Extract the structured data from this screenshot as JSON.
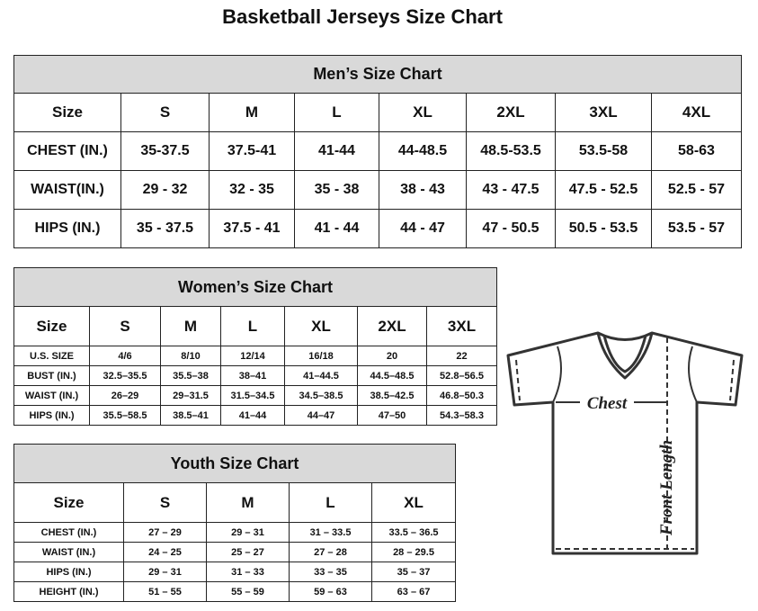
{
  "page_title": "Basketball Jerseys Size Chart",
  "men": {
    "title": "Men’s Size Chart",
    "headers": [
      "Size",
      "S",
      "M",
      "L",
      "XL",
      "2XL",
      "3XL",
      "4XL"
    ],
    "rows": [
      [
        "CHEST (IN.)",
        "35-37.5",
        "37.5-41",
        "41-44",
        "44-48.5",
        "48.5-53.5",
        "53.5-58",
        "58-63"
      ],
      [
        "WAIST(IN.)",
        "29 - 32",
        "32 - 35",
        "35 - 38",
        "38 - 43",
        "43 - 47.5",
        "47.5 - 52.5",
        "52.5 - 57"
      ],
      [
        "HIPS (IN.)",
        "35 - 37.5",
        "37.5 - 41",
        "41 - 44",
        "44 - 47",
        "47 - 50.5",
        "50.5 - 53.5",
        "53.5 - 57"
      ]
    ]
  },
  "women": {
    "title": "Women’s Size Chart",
    "headers": [
      "Size",
      "S",
      "M",
      "L",
      "XL",
      "2XL",
      "3XL"
    ],
    "rows": [
      [
        "U.S. SIZE",
        "4/6",
        "8/10",
        "12/14",
        "16/18",
        "20",
        "22"
      ],
      [
        "BUST (IN.)",
        "32.5–35.5",
        "35.5–38",
        "38–41",
        "41–44.5",
        "44.5–48.5",
        "52.8–56.5"
      ],
      [
        "WAIST (IN.)",
        "26–29",
        "29–31.5",
        "31.5–34.5",
        "34.5–38.5",
        "38.5–42.5",
        "46.8–50.3"
      ],
      [
        "HIPS (IN.)",
        "35.5–58.5",
        "38.5–41",
        "41–44",
        "44–47",
        "47–50",
        "54.3–58.3"
      ]
    ]
  },
  "youth": {
    "title": "Youth Size Chart",
    "headers": [
      "Size",
      "S",
      "M",
      "L",
      "XL"
    ],
    "rows": [
      [
        "CHEST (IN.)",
        "27 – 29",
        "29 – 31",
        "31 – 33.5",
        "33.5 – 36.5"
      ],
      [
        "WAIST (IN.)",
        "24 – 25",
        "25 – 27",
        "27 – 28",
        "28 – 29.5"
      ],
      [
        "HIPS (IN.)",
        "29 – 31",
        "31 – 33",
        "33 – 35",
        "35 – 37"
      ],
      [
        "HEIGHT (IN.)",
        "51 – 55",
        "55 – 59",
        "59 – 63",
        "63 – 67"
      ]
    ]
  },
  "diagram": {
    "chest_label": "Chest",
    "length_label": "Front Length"
  }
}
